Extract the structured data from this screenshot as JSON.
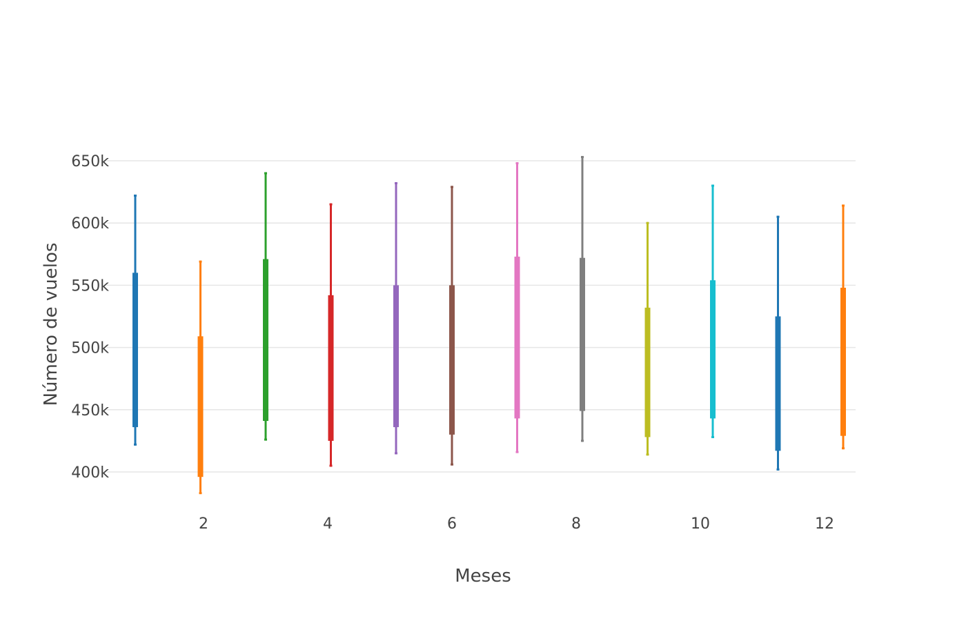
{
  "chart_data": {
    "type": "box",
    "xlabel": "Meses",
    "ylabel": "Número de vuelos",
    "xlim": [
      0.55,
      12.5
    ],
    "ylim": [
      375000,
      660000
    ],
    "x_ticks": [
      2,
      4,
      6,
      8,
      10,
      12
    ],
    "x_tick_labels": [
      "2",
      "4",
      "6",
      "8",
      "10",
      "12"
    ],
    "y_ticks": [
      400000,
      450000,
      500000,
      550000,
      600000,
      650000
    ],
    "y_tick_labels": [
      "400k",
      "450k",
      "500k",
      "550k",
      "600k",
      "650k"
    ],
    "grid": true,
    "legend": "none",
    "series": [
      {
        "month": 1,
        "x": 0.9,
        "color": "#1f77b4",
        "min": 422000,
        "q1": 436000,
        "q3": 560000,
        "max": 622000
      },
      {
        "month": 2,
        "x": 1.95,
        "color": "#ff7f0e",
        "min": 383000,
        "q1": 396000,
        "q3": 509000,
        "max": 569000
      },
      {
        "month": 3,
        "x": 3.0,
        "color": "#2ca02c",
        "min": 426000,
        "q1": 441000,
        "q3": 571000,
        "max": 640000
      },
      {
        "month": 4,
        "x": 4.05,
        "color": "#d62728",
        "min": 405000,
        "q1": 425000,
        "q3": 542000,
        "max": 615000
      },
      {
        "month": 5,
        "x": 5.1,
        "color": "#9467bd",
        "min": 415000,
        "q1": 436000,
        "q3": 550000,
        "max": 632000
      },
      {
        "month": 6,
        "x": 6.0,
        "color": "#8c564b",
        "min": 406000,
        "q1": 430000,
        "q3": 550000,
        "max": 629000
      },
      {
        "month": 7,
        "x": 7.05,
        "color": "#e377c2",
        "min": 416000,
        "q1": 443000,
        "q3": 573000,
        "max": 648000
      },
      {
        "month": 8,
        "x": 8.1,
        "color": "#7f7f7f",
        "min": 425000,
        "q1": 449000,
        "q3": 572000,
        "max": 653000
      },
      {
        "month": 9,
        "x": 9.15,
        "color": "#bcbd22",
        "min": 414000,
        "q1": 428000,
        "q3": 532000,
        "max": 600000
      },
      {
        "month": 10,
        "x": 10.2,
        "color": "#17becf",
        "min": 428000,
        "q1": 443000,
        "q3": 554000,
        "max": 630000
      },
      {
        "month": 11,
        "x": 11.25,
        "color": "#1f77b4",
        "min": 402000,
        "q1": 417000,
        "q3": 525000,
        "max": 605000
      },
      {
        "month": 12,
        "x": 12.3,
        "color": "#ff7f0e",
        "min": 419000,
        "q1": 429000,
        "q3": 548000,
        "max": 614000
      }
    ]
  }
}
